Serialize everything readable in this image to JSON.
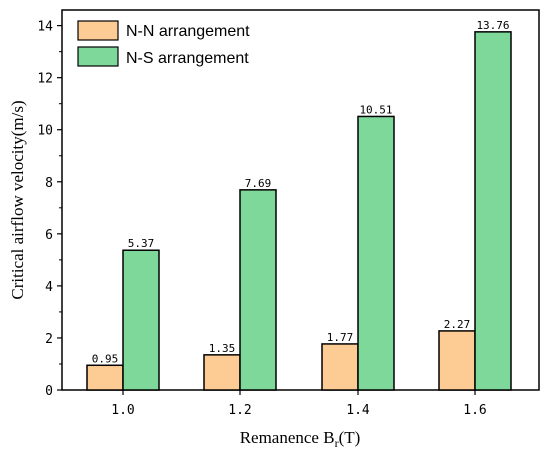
{
  "chart_data": {
    "type": "bar",
    "categories": [
      "1.0",
      "1.2",
      "1.4",
      "1.6"
    ],
    "series": [
      {
        "name": "N-N arrangement",
        "values": [
          0.95,
          1.35,
          1.77,
          2.27
        ],
        "color": "#FDCB94"
      },
      {
        "name": "N-S arrangement",
        "values": [
          5.37,
          7.69,
          10.51,
          13.76
        ],
        "color": "#7DD89A"
      }
    ],
    "data_labels": [
      [
        "0.95",
        "1.35",
        "1.77",
        "2.27"
      ],
      [
        "5.37",
        "7.69",
        "10.51",
        "13.76"
      ]
    ],
    "xlabel": "Remanence B",
    "xlabel_subscript": "r",
    "xlabel_suffix": "(T)",
    "ylabel": "Critical airflow velocity(m/s)",
    "ylim": [
      0,
      14.6
    ],
    "yticks": [
      0,
      2,
      4,
      6,
      8,
      10,
      12,
      14
    ],
    "grid": false,
    "legend_position": "top-left"
  }
}
